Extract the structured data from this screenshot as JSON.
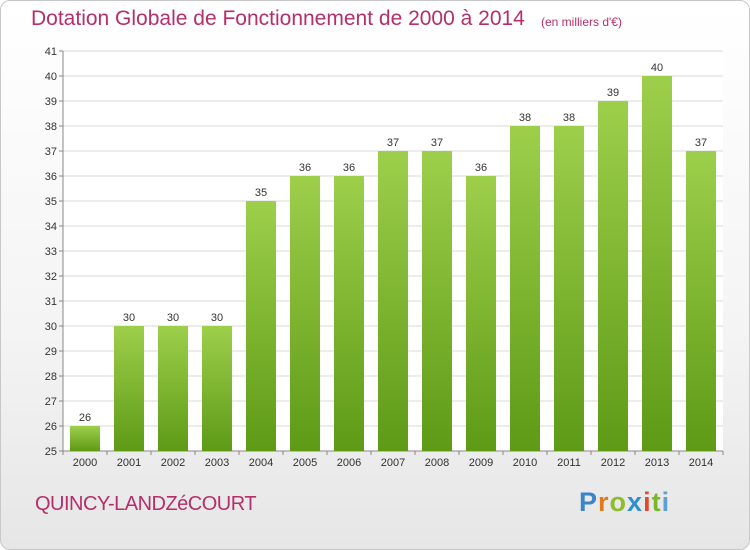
{
  "header": {
    "title": "Dotation Globale de Fonctionnement de 2000 à 2014",
    "subtitle": "(en milliers d'€)"
  },
  "footer": {
    "commune": "QUINCY-LANDZéCOURT",
    "logo_letters": [
      "P",
      "r",
      "o",
      "x",
      "i",
      "t",
      "i"
    ]
  },
  "colors": {
    "bar_top": "#9dcf4b",
    "bar_bottom": "#5e9a16",
    "title": "#b52f6b",
    "grid": "#d9d9d9"
  },
  "chart_data": {
    "type": "bar",
    "title": "Dotation Globale de Fonctionnement de 2000 à 2014",
    "subtitle": "(en milliers d'€)",
    "xlabel": "",
    "ylabel": "",
    "categories": [
      "2000",
      "2001",
      "2002",
      "2003",
      "2004",
      "2005",
      "2006",
      "2007",
      "2008",
      "2009",
      "2010",
      "2011",
      "2012",
      "2013",
      "2014"
    ],
    "values": [
      26,
      30,
      30,
      30,
      35,
      36,
      36,
      37,
      37,
      36,
      38,
      38,
      39,
      40,
      37
    ],
    "ylim": [
      25,
      41
    ],
    "yticks": [
      25,
      26,
      27,
      28,
      29,
      30,
      31,
      32,
      33,
      34,
      35,
      36,
      37,
      38,
      39,
      40,
      41
    ],
    "grid": true,
    "legend": "none"
  }
}
